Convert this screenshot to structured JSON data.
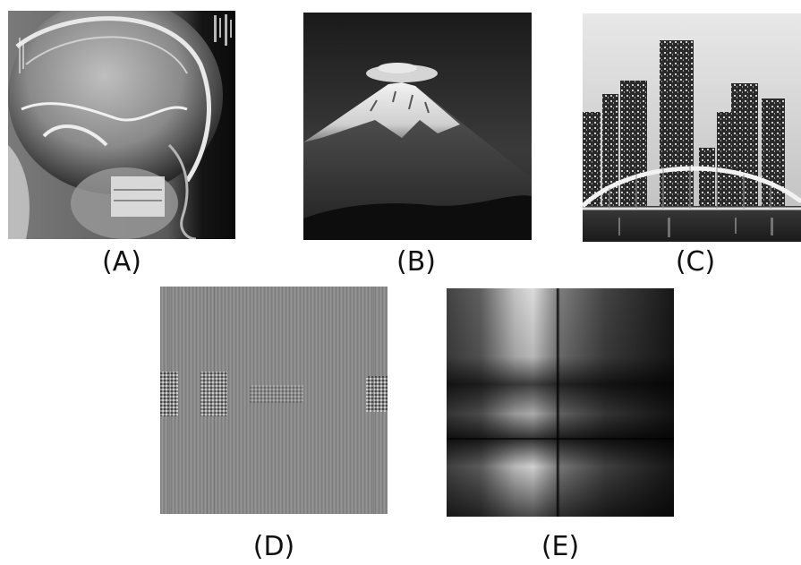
{
  "figure": {
    "panels": [
      {
        "id": "A",
        "label": "(A)",
        "content": "x-ray-skull-image"
      },
      {
        "id": "B",
        "label": "(B)",
        "content": "mountain-image"
      },
      {
        "id": "C",
        "label": "(C)",
        "content": "city-bridge-image"
      },
      {
        "id": "D",
        "label": "(D)",
        "content": "gray-noise-pattern-image"
      },
      {
        "id": "E",
        "label": "(E)",
        "content": "blurred-pattern-image"
      }
    ]
  }
}
